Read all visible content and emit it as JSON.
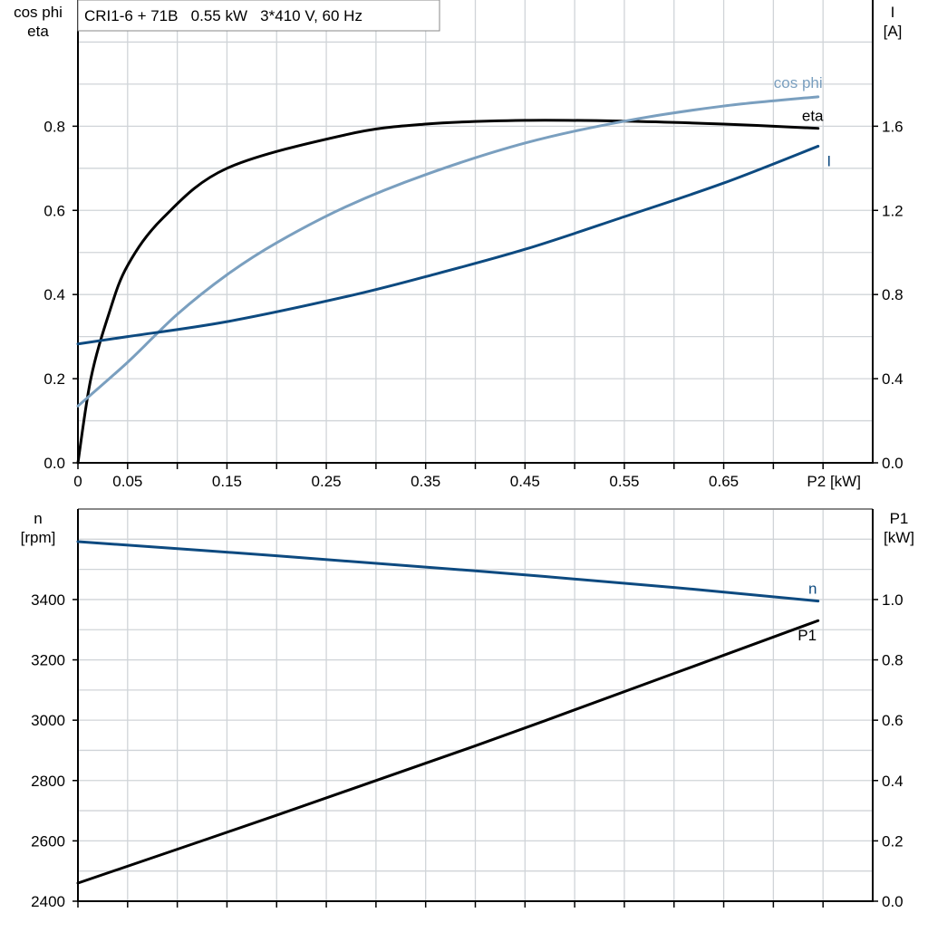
{
  "title": "CRI1-6 + 71B   0.55 kW   3*410 V, 60 Hz",
  "colors": {
    "eta": "#000000",
    "cos_phi": "#7a9fbf",
    "I": "#0d4a80",
    "n": "#0d4a80",
    "P1": "#000000",
    "grid": "#d0d4d8"
  },
  "chart_data": [
    {
      "type": "line",
      "xlabel": "P2 [kW]",
      "ylabel_left": [
        "cos phi",
        "eta"
      ],
      "ylabel_right": [
        "I",
        "[A]"
      ],
      "xlim": [
        0,
        0.8
      ],
      "ylim_left": [
        0,
        1.1
      ],
      "ylim_right": [
        0,
        2.2
      ],
      "x_ticks": [
        "0",
        "0.05",
        "0.15",
        "0.25",
        "0.35",
        "0.45",
        "0.55",
        "0.65"
      ],
      "y_ticks_left": [
        "0.0",
        "0.2",
        "0.4",
        "0.6",
        "0.8"
      ],
      "y_ticks_right": [
        "0.0",
        "0.4",
        "0.8",
        "1.2",
        "1.6"
      ],
      "grid": true,
      "series": [
        {
          "name": "eta",
          "axis": "left",
          "color_key": "eta",
          "x": [
            0,
            0.013,
            0.031,
            0.05,
            0.086,
            0.15,
            0.27,
            0.35,
            0.45,
            0.55,
            0.65,
            0.745
          ],
          "y": [
            0,
            0.2,
            0.353,
            0.469,
            0.583,
            0.7,
            0.78,
            0.805,
            0.814,
            0.812,
            0.805,
            0.795
          ]
        },
        {
          "name": "cos phi",
          "axis": "left",
          "color_key": "cos_phi",
          "x": [
            0,
            0.05,
            0.1,
            0.15,
            0.2,
            0.27,
            0.35,
            0.45,
            0.55,
            0.65,
            0.745
          ],
          "y": [
            0.135,
            0.239,
            0.353,
            0.447,
            0.523,
            0.609,
            0.685,
            0.76,
            0.812,
            0.848,
            0.87
          ]
        },
        {
          "name": "I",
          "axis": "right",
          "color_key": "I",
          "x": [
            0,
            0.05,
            0.15,
            0.27,
            0.35,
            0.45,
            0.55,
            0.65,
            0.745
          ],
          "y": [
            0.565,
            0.6,
            0.671,
            0.79,
            0.885,
            1.015,
            1.17,
            1.33,
            1.505
          ]
        }
      ]
    },
    {
      "type": "line",
      "xlim": [
        0,
        0.8
      ],
      "ylabel_left": [
        "n",
        "[rpm]"
      ],
      "ylabel_right": [
        "P1",
        "[kW]"
      ],
      "ylim_left": [
        2400,
        3700
      ],
      "ylim_right": [
        0,
        1.3
      ],
      "y_ticks_left": [
        "2400",
        "2600",
        "2800",
        "3000",
        "3200",
        "3400"
      ],
      "y_ticks_right": [
        "0.0",
        "0.2",
        "0.4",
        "0.6",
        "0.8",
        "1.0"
      ],
      "grid": true,
      "series": [
        {
          "name": "n",
          "axis": "left",
          "color_key": "n",
          "x": [
            0,
            0.2,
            0.4,
            0.6,
            0.745
          ],
          "y": [
            3592,
            3545,
            3495,
            3440,
            3395
          ]
        },
        {
          "name": "P1",
          "axis": "right",
          "color_key": "P1",
          "x": [
            0,
            0.2,
            0.4,
            0.6,
            0.745
          ],
          "y": [
            0.06,
            0.285,
            0.515,
            0.755,
            0.93
          ]
        }
      ]
    }
  ]
}
